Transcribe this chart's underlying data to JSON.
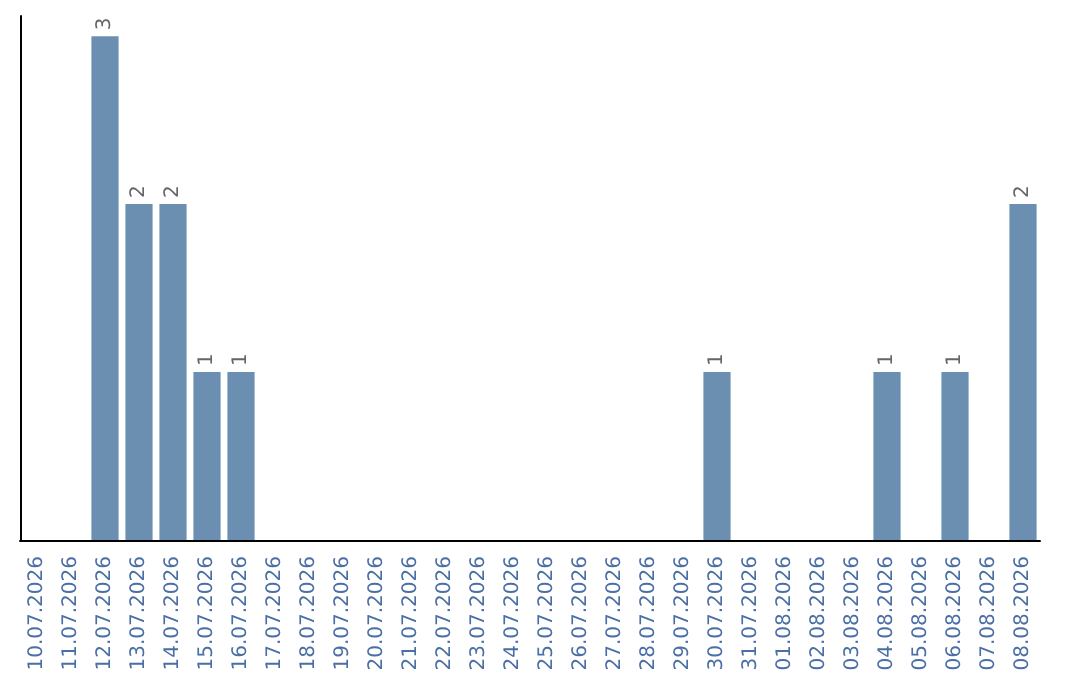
{
  "chart_data": {
    "type": "bar",
    "categories": [
      "10.07.2026",
      "11.07.2026",
      "12.07.2026",
      "13.07.2026",
      "14.07.2026",
      "15.07.2026",
      "16.07.2026",
      "17.07.2026",
      "18.07.2026",
      "19.07.2026",
      "20.07.2026",
      "21.07.2026",
      "22.07.2026",
      "23.07.2026",
      "24.07.2026",
      "25.07.2026",
      "26.07.2026",
      "27.07.2026",
      "28.07.2026",
      "29.07.2026",
      "30.07.2026",
      "31.07.2026",
      "01.08.2026",
      "02.08.2026",
      "03.08.2026",
      "04.08.2026",
      "05.08.2026",
      "06.08.2026",
      "07.08.2026",
      "08.08.2026"
    ],
    "values": [
      0,
      0,
      3,
      2,
      2,
      1,
      1,
      0,
      0,
      0,
      0,
      0,
      0,
      0,
      0,
      0,
      0,
      0,
      0,
      0,
      1,
      0,
      0,
      0,
      0,
      1,
      0,
      1,
      0,
      2
    ],
    "value_labels": [
      null,
      null,
      "3",
      "2",
      "2",
      "1",
      "1",
      null,
      null,
      null,
      null,
      null,
      null,
      null,
      null,
      null,
      null,
      null,
      null,
      null,
      "1",
      null,
      null,
      null,
      null,
      "1",
      null,
      "1",
      null,
      "2"
    ],
    "color": "#6b8fb0",
    "grid": false,
    "tick_labels": "x"
  }
}
